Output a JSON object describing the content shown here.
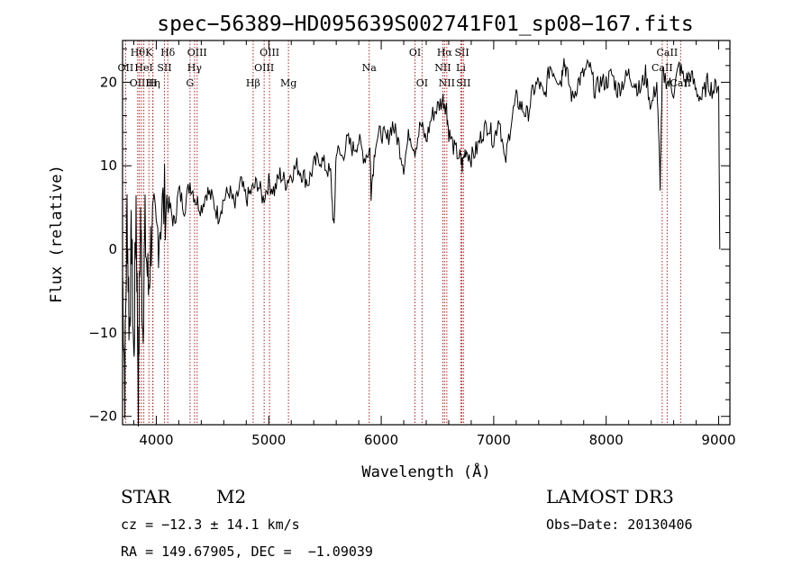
{
  "chart_data": {
    "type": "line",
    "title": "spec−56389−HD095639S002741F01_sp08−167.fits",
    "xlabel": "Wavelength (Å)",
    "ylabel": "Flux (relative)",
    "xlim": [
      3700,
      9100
    ],
    "ylim": [
      -21,
      25
    ],
    "xticks": [
      4000,
      5000,
      6000,
      7000,
      8000,
      9000
    ],
    "yticks": [
      -20,
      -10,
      0,
      10,
      20
    ],
    "ytick_labels": [
      "−20",
      "−10",
      "0",
      "10",
      "20"
    ],
    "series_color": "#000000",
    "line_color": "#b22222",
    "spectrum": {
      "x": [
        3700,
        3720,
        3740,
        3760,
        3780,
        3800,
        3820,
        3840,
        3860,
        3880,
        3900,
        3930,
        3960,
        4000,
        4040,
        4080,
        4120,
        4160,
        4200,
        4250,
        4300,
        4350,
        4400,
        4450,
        4500,
        4550,
        4600,
        4650,
        4700,
        4750,
        4800,
        4850,
        4900,
        4950,
        5000,
        5050,
        5100,
        5150,
        5200,
        5250,
        5300,
        5350,
        5400,
        5450,
        5500,
        5550,
        5580,
        5600,
        5650,
        5700,
        5750,
        5800,
        5850,
        5900,
        5910,
        5950,
        6000,
        6050,
        6100,
        6150,
        6200,
        6250,
        6300,
        6350,
        6400,
        6450,
        6500,
        6550,
        6580,
        6600,
        6650,
        6700,
        6720,
        6750,
        6800,
        6850,
        6900,
        6950,
        7000,
        7050,
        7100,
        7150,
        7200,
        7250,
        7300,
        7350,
        7400,
        7450,
        7500,
        7550,
        7600,
        7620,
        7650,
        7700,
        7750,
        7800,
        7850,
        7900,
        7950,
        8000,
        8050,
        8100,
        8150,
        8200,
        8250,
        8300,
        8350,
        8400,
        8450,
        8480,
        8500,
        8550,
        8600,
        8650,
        8700,
        8750,
        8800,
        8850,
        8900,
        8950,
        9000,
        9010
      ],
      "y": [
        -3,
        -16,
        5,
        -10,
        2,
        -14,
        6,
        -17,
        4,
        -9,
        2,
        -5,
        3,
        1,
        4,
        6,
        5,
        3,
        7,
        5,
        8,
        6,
        5,
        7,
        6,
        4,
        6,
        7,
        5,
        8,
        6,
        7,
        8,
        6,
        8,
        7,
        9,
        8,
        9,
        10,
        9,
        8,
        10,
        11,
        10,
        9,
        2,
        12,
        11,
        13,
        12,
        13,
        11,
        12,
        7,
        13,
        14,
        13,
        15,
        13,
        10,
        14,
        12,
        15,
        13,
        16,
        17,
        18,
        17,
        14,
        12,
        11,
        10,
        12,
        11,
        12,
        14,
        15,
        13,
        16,
        10,
        15,
        18,
        17,
        16,
        19,
        20,
        18,
        22,
        21,
        20,
        23,
        21,
        18,
        20,
        21,
        22,
        19,
        20,
        20,
        21,
        19,
        20,
        21,
        20,
        19,
        21,
        17,
        20,
        8,
        21,
        20,
        19,
        22,
        20,
        21,
        19,
        18,
        20,
        19,
        20,
        0
      ]
    },
    "lines": [
      {
        "wl": 3727,
        "label": "OII",
        "row": 1
      },
      {
        "wl": 3835,
        "label": "Hθ",
        "row": 0
      },
      {
        "wl": 3850,
        "label": "OIII",
        "row": 2
      },
      {
        "wl": 3868,
        "label": "",
        "row": 0
      },
      {
        "wl": 3889,
        "label": "HeI",
        "row": 1
      },
      {
        "wl": 3934,
        "label": "K",
        "row": 0
      },
      {
        "wl": 3969,
        "label": "H",
        "row": 2
      },
      {
        "wl": 3970,
        "label": "Hη",
        "row": 2
      },
      {
        "wl": 4072,
        "label": "SII",
        "row": 1
      },
      {
        "wl": 4102,
        "label": "Hδ",
        "row": 0
      },
      {
        "wl": 4300,
        "label": "G",
        "row": 2
      },
      {
        "wl": 4340,
        "label": "Hγ",
        "row": 1
      },
      {
        "wl": 4363,
        "label": "OIII",
        "row": 0
      },
      {
        "wl": 4861,
        "label": "Hβ",
        "row": 2
      },
      {
        "wl": 4959,
        "label": "OIII",
        "row": 1
      },
      {
        "wl": 5007,
        "label": "OIII",
        "row": 0
      },
      {
        "wl": 5175,
        "label": "Mg",
        "row": 2
      },
      {
        "wl": 5893,
        "label": "Na",
        "row": 1
      },
      {
        "wl": 6300,
        "label": "OI",
        "row": 0
      },
      {
        "wl": 6363,
        "label": "OI",
        "row": 2
      },
      {
        "wl": 6548,
        "label": "NII",
        "row": 1
      },
      {
        "wl": 6563,
        "label": "Hα",
        "row": 0
      },
      {
        "wl": 6583,
        "label": "NII",
        "row": 2
      },
      {
        "wl": 6708,
        "label": "Li",
        "row": 1
      },
      {
        "wl": 6717,
        "label": "SII",
        "row": 0
      },
      {
        "wl": 6731,
        "label": "SII",
        "row": 2
      },
      {
        "wl": 8498,
        "label": "CaII",
        "row": 1
      },
      {
        "wl": 8542,
        "label": "CaII",
        "row": 0
      },
      {
        "wl": 8662,
        "label": "CaII",
        "row": 2
      }
    ]
  },
  "info": {
    "object_class": "STAR",
    "subclass": "M2",
    "survey": "LAMOST DR3",
    "cz": "cz = −12.3 ± 14.1 km/s",
    "obs_date": "Obs−Date: 20130406",
    "radec": "RA = 149.67905, DEC =  −1.09039"
  }
}
